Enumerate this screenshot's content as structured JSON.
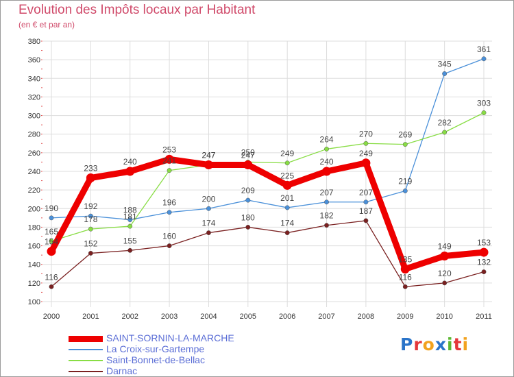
{
  "chart_data": {
    "type": "line",
    "title": "Evolution des Impôts locaux par Habitant",
    "subtitle": "(en € et par an)",
    "xlabel": "",
    "ylabel": "",
    "ylim": [
      100,
      380
    ],
    "yticks": [
      100,
      120,
      140,
      160,
      180,
      200,
      220,
      240,
      260,
      280,
      300,
      320,
      340,
      360,
      380
    ],
    "categories": [
      "2000",
      "2001",
      "2002",
      "2003",
      "2004",
      "2005",
      "2006",
      "2007",
      "2008",
      "2009",
      "2010",
      "2011"
    ],
    "series": [
      {
        "name": "SAINT-SORNIN-LA-MARCHE",
        "color": "#ee0000",
        "values": [
          154,
          233,
          240,
          253,
          247,
          247,
          225,
          240,
          249,
          135,
          149,
          153
        ],
        "labels": [
          "154",
          "233",
          "240",
          "253",
          "247",
          "247",
          "225",
          "240",
          "249",
          "135",
          "149",
          "153"
        ]
      },
      {
        "name": "La Croix-sur-Gartempe",
        "color": "#4a90d9",
        "values": [
          190,
          192,
          188,
          196,
          200,
          209,
          201,
          207,
          207,
          219,
          345,
          361
        ],
        "labels": [
          "190",
          "192",
          "188",
          "196",
          "200",
          "209",
          "201",
          "207",
          "207",
          "219",
          "345",
          "361"
        ]
      },
      {
        "name": "Saint-Bonnet-de-Bellac",
        "color": "#88dd44",
        "values": [
          165,
          178,
          181,
          241,
          247,
          250,
          249,
          264,
          270,
          269,
          282,
          303
        ],
        "labels": [
          "165",
          "178",
          "181",
          "241",
          "247",
          "250",
          "249",
          "264",
          "270",
          "269",
          "282",
          "303"
        ]
      },
      {
        "name": "Darnac",
        "color": "#7a2020",
        "values": [
          116,
          152,
          155,
          160,
          174,
          180,
          174,
          182,
          187,
          116,
          120,
          132
        ],
        "labels": [
          "116",
          "152",
          "155",
          "160",
          "174",
          "180",
          "174",
          "182",
          "187",
          "116",
          "120",
          "132"
        ]
      }
    ],
    "legend_position": "bottom-left"
  },
  "logo": {
    "text": "Proxiti",
    "letter_colors": [
      "#2a74c9",
      "#e4373a",
      "#f2a21e",
      "#2a74c9",
      "#5bb832",
      "#e4373a",
      "#f2a21e"
    ]
  }
}
